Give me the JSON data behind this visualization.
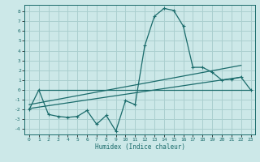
{
  "xlabel": "Humidex (Indice chaleur)",
  "bg_color": "#cce8e8",
  "grid_color": "#aacfcf",
  "line_color": "#1a6b6b",
  "xlim": [
    -0.5,
    23.5
  ],
  "ylim": [
    -4.5,
    8.7
  ],
  "xticks": [
    0,
    1,
    2,
    3,
    4,
    5,
    6,
    7,
    8,
    9,
    10,
    11,
    12,
    13,
    14,
    15,
    16,
    17,
    18,
    19,
    20,
    21,
    22,
    23
  ],
  "yticks": [
    -4,
    -3,
    -2,
    -1,
    0,
    1,
    2,
    3,
    4,
    5,
    6,
    7,
    8
  ],
  "series1_x": [
    0,
    1,
    2,
    3,
    4,
    5,
    6,
    7,
    8,
    9,
    10,
    11,
    12,
    13,
    14,
    15,
    16,
    17,
    18,
    19,
    20,
    21,
    22,
    23
  ],
  "series1_y": [
    -2.0,
    0.0,
    -2.5,
    -2.7,
    -2.8,
    -2.7,
    -2.1,
    -3.5,
    -2.6,
    -4.2,
    -1.1,
    -1.5,
    4.5,
    7.5,
    8.3,
    8.1,
    6.5,
    2.3,
    2.3,
    1.8,
    1.0,
    1.1,
    1.3,
    0.0
  ],
  "line2_x": [
    1,
    23
  ],
  "line2_y": [
    0.0,
    0.0
  ],
  "line3_x": [
    0,
    22
  ],
  "line3_y": [
    -1.9,
    1.3
  ],
  "line4_x": [
    0,
    22
  ],
  "line4_y": [
    -1.5,
    2.5
  ]
}
